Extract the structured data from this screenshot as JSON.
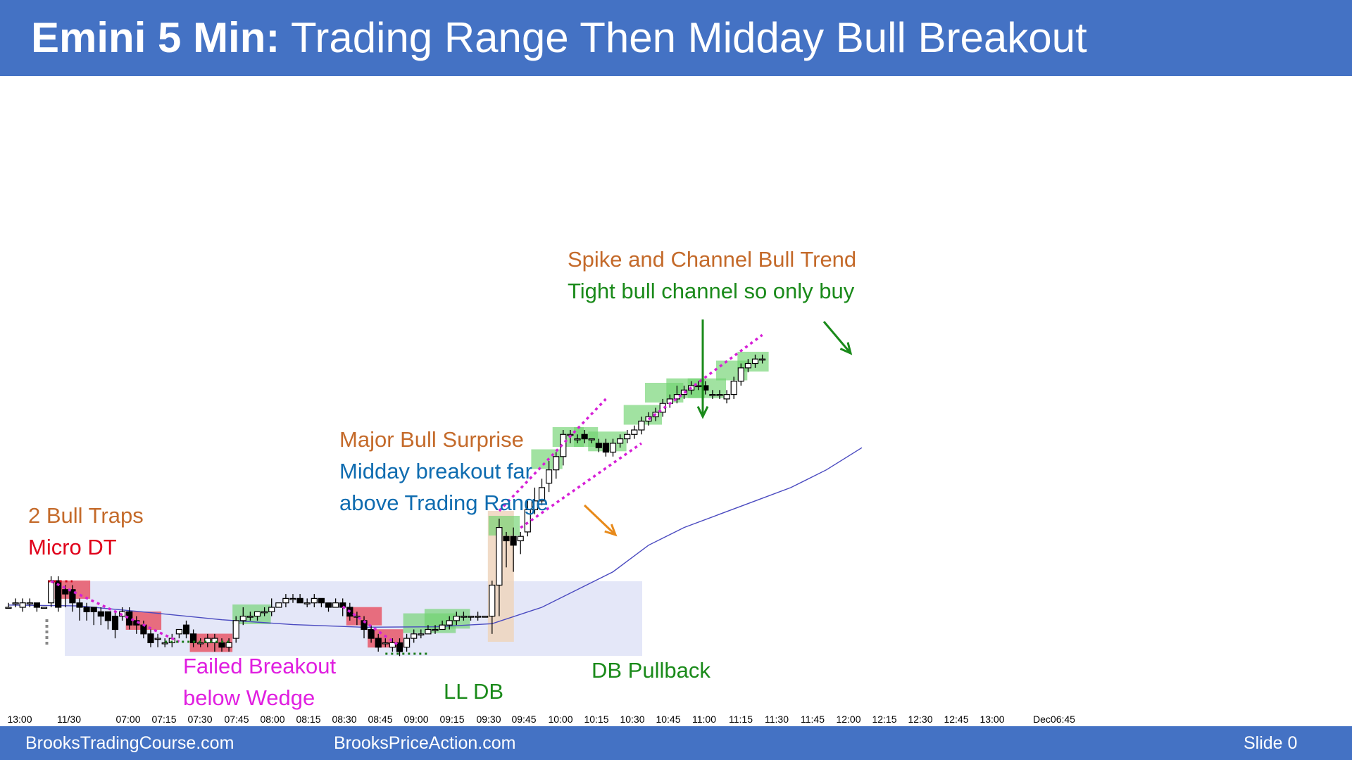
{
  "header": {
    "title_bold": "Emini 5 Min:",
    "title_rest": "Trading Range Then Midday Bull Breakout"
  },
  "footer": {
    "site1": "BrooksTradingCourse.com",
    "site2": "BrooksPriceAction.com",
    "slide": "Slide  0"
  },
  "colors": {
    "header_bg": "#4472c4",
    "bull_highlight": "#6ed36e",
    "bear_highlight": "#e8394a",
    "trading_range_box": "#dfe3f7",
    "breakout_bar_box": "#efd5bd",
    "moving_average": "#4a4ac0",
    "trendline": "#d61fd6",
    "orange_text": "#c46a2a",
    "red_text": "#e0001a",
    "blue_text": "#0f6cb0",
    "green_text": "#1a8a1a",
    "magenta_text": "#e01ee0"
  },
  "annotations": {
    "bull_traps": "2 Bull Traps",
    "micro_dt": "Micro DT",
    "failed_breakout_1": "Failed Breakout",
    "failed_breakout_2": "below Wedge",
    "ll_db": "LL DB",
    "major_surprise": "Major Bull Surprise",
    "midday_1": "Midday breakout far",
    "midday_2": "above Trading Range",
    "db_pullback": "DB Pullback",
    "spike_channel": "Spike and Channel Bull Trend",
    "tight_channel": "Tight bull channel so only buy"
  },
  "chart_data": {
    "type": "candlestick",
    "title": "",
    "x_tick_labels": [
      "13:00",
      "11/30",
      "07:00",
      "07:15",
      "07:30",
      "07:45",
      "08:00",
      "08:15",
      "08:30",
      "08:45",
      "09:00",
      "09:15",
      "09:30",
      "09:45",
      "10:00",
      "10:15",
      "10:30",
      "10:45",
      "11:00",
      "11:15",
      "11:30",
      "11:45",
      "12:00",
      "12:15",
      "12:30",
      "12:45",
      "13:00",
      "Dec06:45"
    ],
    "price_scale": "relative (no price axis shown)",
    "bars": [
      [
        95,
        95,
        96,
        95
      ],
      [
        96,
        96,
        97,
        95
      ],
      [
        95,
        96,
        97,
        94
      ],
      [
        96,
        96,
        97,
        95
      ],
      [
        96,
        95,
        96,
        94
      ],
      [
        95,
        95,
        95,
        95
      ],
      [
        96,
        101,
        102,
        95
      ],
      [
        101,
        95,
        102,
        94
      ],
      [
        99,
        98,
        100,
        95
      ],
      [
        99,
        96,
        100,
        94
      ],
      [
        96,
        95,
        97,
        92
      ],
      [
        95,
        94,
        96,
        92
      ],
      [
        95,
        94,
        95,
        91
      ],
      [
        94,
        93,
        95,
        91
      ],
      [
        94,
        92,
        94,
        90
      ],
      [
        93,
        90,
        94,
        88
      ],
      [
        93,
        94,
        95,
        92
      ],
      [
        94,
        91,
        95,
        90
      ],
      [
        92,
        91,
        93,
        89
      ],
      [
        91,
        89,
        92,
        88
      ],
      [
        89,
        87,
        90,
        86
      ],
      [
        88,
        88,
        89,
        86
      ],
      [
        87,
        87,
        88,
        86
      ],
      [
        87,
        88,
        89,
        86
      ],
      [
        89,
        90,
        90,
        88
      ],
      [
        91,
        89,
        92,
        88
      ],
      [
        89,
        87,
        90,
        86
      ],
      [
        87,
        87,
        88,
        86
      ],
      [
        87,
        88,
        89,
        86
      ],
      [
        87,
        88,
        89,
        85
      ],
      [
        87,
        86,
        88,
        85
      ],
      [
        86,
        87,
        88,
        85
      ],
      [
        88,
        92,
        93,
        87
      ],
      [
        92,
        93,
        95,
        91
      ],
      [
        93,
        93,
        94,
        92
      ],
      [
        93,
        94,
        94,
        92
      ],
      [
        94,
        94,
        95,
        93
      ],
      [
        94,
        95,
        97,
        93
      ],
      [
        95,
        96,
        96,
        95
      ],
      [
        96,
        97,
        98,
        95
      ],
      [
        97,
        97,
        98,
        96
      ],
      [
        97,
        96,
        98,
        96
      ],
      [
        96,
        96,
        97,
        95
      ],
      [
        96,
        97,
        98,
        95
      ],
      [
        97,
        96,
        97,
        95
      ],
      [
        96,
        95,
        96,
        94
      ],
      [
        95,
        96,
        97,
        95
      ],
      [
        96,
        95,
        97,
        93
      ],
      [
        95,
        93,
        96,
        92
      ],
      [
        93,
        93,
        94,
        91
      ],
      [
        92,
        90,
        93,
        88
      ],
      [
        90,
        88,
        91,
        87
      ],
      [
        88,
        86,
        89,
        85
      ],
      [
        87,
        87,
        88,
        86
      ],
      [
        86,
        87,
        88,
        85
      ],
      [
        87,
        85,
        88,
        84
      ],
      [
        86,
        88,
        89,
        85
      ],
      [
        88,
        89,
        90,
        87
      ],
      [
        89,
        89,
        90,
        88
      ],
      [
        89,
        90,
        91,
        89
      ],
      [
        90,
        90,
        91,
        89
      ],
      [
        90,
        91,
        92,
        90
      ],
      [
        91,
        92,
        93,
        90
      ],
      [
        92,
        93,
        94,
        91
      ],
      [
        93,
        93,
        94,
        92
      ],
      [
        93,
        93,
        93,
        92
      ],
      [
        93,
        93,
        94,
        92
      ],
      [
        93,
        93,
        93,
        93
      ],
      [
        93,
        100,
        101,
        89
      ],
      [
        100,
        113,
        115,
        93
      ],
      [
        111,
        110,
        112,
        104
      ],
      [
        111,
        109,
        113,
        103
      ],
      [
        110,
        111,
        112,
        107
      ],
      [
        112,
        117,
        119,
        111
      ],
      [
        117,
        119,
        122,
        116
      ],
      [
        119,
        122,
        124,
        118
      ],
      [
        123,
        126,
        128,
        121
      ],
      [
        126,
        129,
        130,
        124
      ],
      [
        129,
        134,
        135,
        127
      ],
      [
        134,
        134,
        135,
        132
      ],
      [
        133,
        133,
        134,
        132
      ],
      [
        134,
        133,
        135,
        132
      ],
      [
        133,
        133,
        133,
        132
      ],
      [
        132,
        131,
        133,
        130
      ],
      [
        132,
        130,
        133,
        129
      ],
      [
        130,
        132,
        133,
        129
      ],
      [
        132,
        133,
        134,
        131
      ],
      [
        133,
        134,
        135,
        132
      ],
      [
        134,
        135,
        136,
        133
      ],
      [
        135,
        137,
        138,
        134
      ],
      [
        137,
        138,
        139,
        136
      ],
      [
        138,
        139,
        140,
        137
      ],
      [
        139,
        141,
        142,
        138
      ],
      [
        141,
        142,
        143,
        140
      ],
      [
        142,
        143,
        145,
        141
      ],
      [
        143,
        144,
        145,
        142
      ],
      [
        144,
        145,
        146,
        143
      ],
      [
        145,
        145,
        146,
        144
      ],
      [
        145,
        144,
        146,
        143
      ],
      [
        143,
        143,
        144,
        142
      ],
      [
        143,
        143,
        144,
        142
      ],
      [
        142,
        143,
        144,
        141
      ],
      [
        143,
        146,
        147,
        142
      ],
      [
        146,
        149,
        150,
        145
      ],
      [
        149,
        150,
        151,
        148
      ],
      [
        150,
        151,
        152,
        149
      ],
      [
        151,
        151,
        152,
        150
      ]
    ],
    "moving_average": [
      [
        0,
        95.5
      ],
      [
        10,
        95.3
      ],
      [
        20,
        93.8
      ],
      [
        30,
        92.2
      ],
      [
        40,
        91.1
      ],
      [
        50,
        90.5
      ],
      [
        60,
        90.6
      ],
      [
        68,
        91.3
      ],
      [
        75,
        95
      ],
      [
        85,
        103
      ],
      [
        90,
        109
      ],
      [
        95,
        113
      ],
      [
        100,
        116
      ],
      [
        105,
        119
      ],
      [
        110,
        122
      ],
      [
        115,
        126
      ],
      [
        118,
        129
      ],
      [
        120,
        131
      ]
    ],
    "x_day_break_bar": 5
  }
}
